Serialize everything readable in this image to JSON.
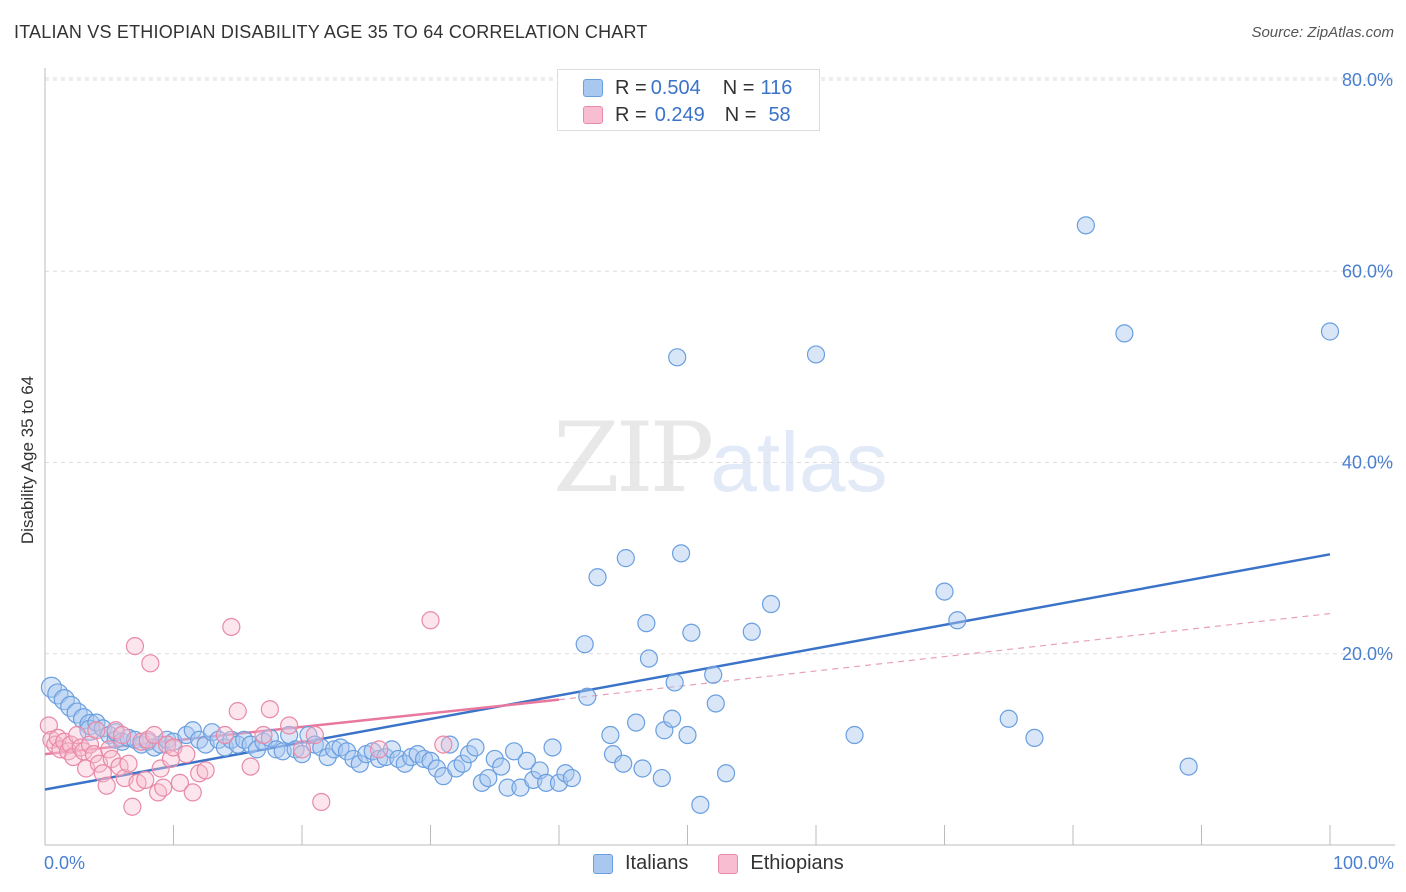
{
  "header": {
    "title": "ITALIAN VS ETHIOPIAN DISABILITY AGE 35 TO 64 CORRELATION CHART",
    "source": "Source: ZipAtlas.com"
  },
  "watermark": {
    "zip": "ZIP",
    "atlas": "atlas"
  },
  "legend": {
    "rows": [
      {
        "r_label": "R = ",
        "r_value": "0.504",
        "n_label": "N = ",
        "n_value": "116",
        "color": "#a9c8f0",
        "border": "#6a9fe0"
      },
      {
        "r_label": "R = ",
        "r_value": "0.249",
        "n_label": "N = ",
        "n_value": "58",
        "color": "#f8bdd0",
        "border": "#e88aa8"
      }
    ]
  },
  "bottom_legend": [
    {
      "label": "Italians",
      "color": "#a9c8f0",
      "border": "#6a9fe0"
    },
    {
      "label": "Ethiopians",
      "color": "#f8bdd0",
      "border": "#e88aa8"
    }
  ],
  "chart_data": {
    "type": "scatter",
    "title": "ITALIAN VS ETHIOPIAN DISABILITY AGE 35 TO 64 CORRELATION CHART",
    "xlabel": "",
    "ylabel": "Disability Age 35 to 64",
    "xlim": [
      0,
      100
    ],
    "ylim": [
      0,
      80
    ],
    "x_tick_labels": [
      "0.0%",
      "100.0%"
    ],
    "y_ticks": [
      20,
      40,
      60,
      80
    ],
    "y_tick_labels": [
      "20.0%",
      "40.0%",
      "60.0%",
      "80.0%"
    ],
    "grid": true,
    "legend_position": "top-center",
    "series": [
      {
        "name": "Italians",
        "color": "#6a9fe0",
        "fill": "rgba(169,200,240,0.45)",
        "trend": {
          "x": [
            0,
            100
          ],
          "y": [
            5.8,
            30.4
          ],
          "color": "#3b73c8"
        },
        "points": [
          [
            0.5,
            16.5
          ],
          [
            1,
            15.8
          ],
          [
            1.5,
            15.2
          ],
          [
            2,
            14.5
          ],
          [
            2.5,
            13.8
          ],
          [
            3,
            13.2
          ],
          [
            3.5,
            12.6
          ],
          [
            3.5,
            12.0
          ],
          [
            4,
            12.8
          ],
          [
            4.5,
            12.2
          ],
          [
            5,
            11.5
          ],
          [
            5.5,
            11.0
          ],
          [
            5.5,
            11.8
          ],
          [
            6,
            10.8
          ],
          [
            6.5,
            11.2
          ],
          [
            7,
            11.0
          ],
          [
            7.5,
            10.5
          ],
          [
            8,
            10.8
          ],
          [
            8.5,
            10.2
          ],
          [
            9,
            10.5
          ],
          [
            9.5,
            11.0
          ],
          [
            10,
            10.8
          ],
          [
            11,
            11.5
          ],
          [
            11.5,
            12.0
          ],
          [
            12,
            11.0
          ],
          [
            12.5,
            10.5
          ],
          [
            13,
            11.8
          ],
          [
            13.5,
            11.0
          ],
          [
            14,
            10.2
          ],
          [
            14.5,
            11.0
          ],
          [
            15,
            10.5
          ],
          [
            15.5,
            11.0
          ],
          [
            16,
            10.5
          ],
          [
            16.5,
            10.0
          ],
          [
            17,
            10.8
          ],
          [
            17.5,
            11.2
          ],
          [
            18,
            10.0
          ],
          [
            18.5,
            9.8
          ],
          [
            19,
            11.5
          ],
          [
            19.5,
            10.0
          ],
          [
            20,
            9.5
          ],
          [
            20.5,
            11.5
          ],
          [
            21,
            10.5
          ],
          [
            21.5,
            10.2
          ],
          [
            22,
            9.2
          ],
          [
            22.5,
            10.0
          ],
          [
            23,
            10.2
          ],
          [
            23.5,
            9.8
          ],
          [
            24,
            9.0
          ],
          [
            24.5,
            8.5
          ],
          [
            25,
            9.5
          ],
          [
            25.5,
            9.8
          ],
          [
            26,
            9.0
          ],
          [
            26.5,
            9.2
          ],
          [
            27,
            10.0
          ],
          [
            27.5,
            9.0
          ],
          [
            28,
            8.5
          ],
          [
            28.5,
            9.2
          ],
          [
            29,
            9.5
          ],
          [
            29.5,
            9.0
          ],
          [
            30,
            8.8
          ],
          [
            30.5,
            8.0
          ],
          [
            31,
            7.2
          ],
          [
            31.5,
            10.5
          ],
          [
            32,
            8.0
          ],
          [
            32.5,
            8.5
          ],
          [
            33,
            9.5
          ],
          [
            33.5,
            10.2
          ],
          [
            34,
            6.5
          ],
          [
            34.5,
            7.0
          ],
          [
            35,
            9.0
          ],
          [
            35.5,
            8.2
          ],
          [
            36,
            6.0
          ],
          [
            36.5,
            9.8
          ],
          [
            37,
            6.0
          ],
          [
            37.5,
            8.8
          ],
          [
            38,
            6.8
          ],
          [
            38.5,
            7.8
          ],
          [
            39,
            6.5
          ],
          [
            39.5,
            10.2
          ],
          [
            40,
            6.5
          ],
          [
            40.5,
            7.5
          ],
          [
            41,
            7.0
          ],
          [
            42,
            21.0
          ],
          [
            42.2,
            15.5
          ],
          [
            43,
            28.0
          ],
          [
            44,
            11.5
          ],
          [
            44.2,
            9.5
          ],
          [
            45,
            8.5
          ],
          [
            45.2,
            30.0
          ],
          [
            46,
            12.8
          ],
          [
            46.5,
            8.0
          ],
          [
            46.8,
            23.2
          ],
          [
            47,
            19.5
          ],
          [
            48,
            7.0
          ],
          [
            48.2,
            12.0
          ],
          [
            48.8,
            13.2
          ],
          [
            49,
            17.0
          ],
          [
            49.2,
            51.0
          ],
          [
            49.5,
            30.5
          ],
          [
            50,
            11.5
          ],
          [
            50.3,
            22.2
          ],
          [
            51,
            4.2
          ],
          [
            52,
            17.8
          ],
          [
            52.2,
            14.8
          ],
          [
            53,
            7.5
          ],
          [
            55,
            22.3
          ],
          [
            56.5,
            25.2
          ],
          [
            60,
            51.3
          ],
          [
            63,
            11.5
          ],
          [
            70,
            26.5
          ],
          [
            71,
            23.5
          ],
          [
            75,
            13.2
          ],
          [
            77,
            11.2
          ],
          [
            81,
            64.8
          ],
          [
            84,
            53.5
          ],
          [
            89,
            8.2
          ],
          [
            100,
            53.7
          ]
        ]
      },
      {
        "name": "Ethiopians",
        "color": "#e88aa8",
        "fill": "rgba(248,189,208,0.40)",
        "trend": {
          "x": [
            0,
            40
          ],
          "y": [
            9.5,
            15.2
          ],
          "color": "#e8789e"
        },
        "trend_extension": {
          "x": [
            40,
            100
          ],
          "y": [
            15.2,
            24.2
          ],
          "color": "#e8a0b8"
        },
        "points": [
          [
            0.3,
            12.5
          ],
          [
            0.5,
            11.0
          ],
          [
            0.8,
            10.5
          ],
          [
            1,
            11.2
          ],
          [
            1.2,
            10.0
          ],
          [
            1.5,
            10.8
          ],
          [
            1.8,
            9.8
          ],
          [
            2,
            10.5
          ],
          [
            2.2,
            9.2
          ],
          [
            2.5,
            11.5
          ],
          [
            2.8,
            10.2
          ],
          [
            3,
            9.8
          ],
          [
            3.2,
            8.0
          ],
          [
            3.5,
            10.5
          ],
          [
            3.8,
            9.5
          ],
          [
            4,
            12.0
          ],
          [
            4.2,
            8.5
          ],
          [
            4.5,
            7.5
          ],
          [
            4.8,
            6.2
          ],
          [
            5,
            10.0
          ],
          [
            5.2,
            9.0
          ],
          [
            5.5,
            12.0
          ],
          [
            5.8,
            8.2
          ],
          [
            6,
            11.5
          ],
          [
            6.2,
            7.0
          ],
          [
            6.5,
            8.5
          ],
          [
            6.8,
            4.0
          ],
          [
            7,
            20.8
          ],
          [
            7.2,
            6.5
          ],
          [
            7.5,
            10.8
          ],
          [
            7.8,
            6.8
          ],
          [
            8,
            11.0
          ],
          [
            8.2,
            19.0
          ],
          [
            8.5,
            11.5
          ],
          [
            8.8,
            5.5
          ],
          [
            9,
            8.0
          ],
          [
            9.2,
            6.0
          ],
          [
            9.5,
            10.5
          ],
          [
            9.8,
            9.0
          ],
          [
            10,
            10.2
          ],
          [
            10.5,
            6.5
          ],
          [
            11,
            9.5
          ],
          [
            11.5,
            5.5
          ],
          [
            12,
            7.5
          ],
          [
            12.5,
            7.8
          ],
          [
            14,
            11.5
          ],
          [
            14.5,
            22.8
          ],
          [
            15,
            14.0
          ],
          [
            16,
            8.2
          ],
          [
            17,
            11.5
          ],
          [
            17.5,
            14.2
          ],
          [
            19,
            12.5
          ],
          [
            20,
            10.0
          ],
          [
            21,
            11.5
          ],
          [
            21.5,
            4.5
          ],
          [
            26,
            10.0
          ],
          [
            30,
            23.5
          ],
          [
            31,
            10.5
          ]
        ]
      }
    ]
  }
}
